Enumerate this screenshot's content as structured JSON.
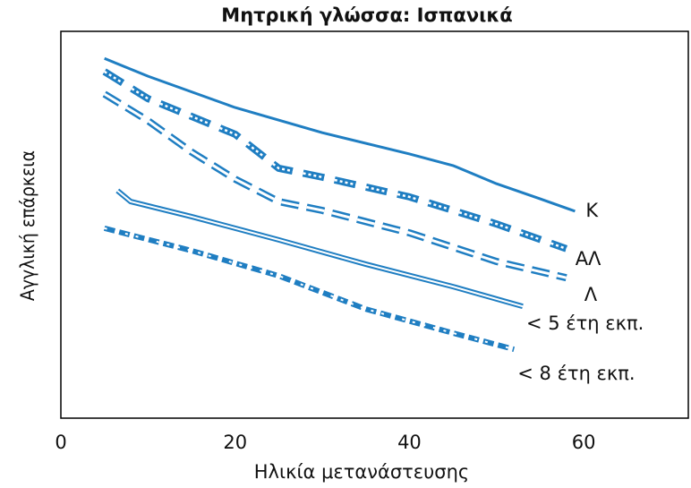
{
  "chart_data": {
    "type": "line",
    "title": "Μητρική γλώσσα: Ισπανικά",
    "xlabel": "Ηλικία μετανάστευσης",
    "ylabel": "Αγγλική επάρκεια",
    "xlim": [
      0,
      72
    ],
    "xticks": [
      0,
      20,
      40,
      60
    ],
    "ylim": [
      0,
      100
    ],
    "series": [
      {
        "name": "Κ",
        "color": "#1f7ec2",
        "style": "solid",
        "x": [
          5,
          10,
          20,
          30,
          40,
          45,
          50,
          55,
          59
        ],
        "values": [
          93,
          88.4,
          80.3,
          73.8,
          68.3,
          65.3,
          60.6,
          56.7,
          53.5
        ]
      },
      {
        "name": "ΑΛ",
        "color": "#1f7ec2",
        "style": "dashed-dotted",
        "x": [
          5,
          10,
          20,
          25,
          30,
          40,
          50,
          58
        ],
        "values": [
          89.6,
          82.6,
          73.4,
          64.6,
          62.3,
          57.2,
          50.2,
          43.8
        ]
      },
      {
        "name": "Λ",
        "color": "#1f7ec2",
        "style": "dashed-hollow",
        "x": [
          5,
          10,
          15,
          20,
          25,
          30,
          40,
          50,
          58
        ],
        "values": [
          83.8,
          76.9,
          68.8,
          61.8,
          56,
          53.7,
          47.9,
          40.5,
          36.3
        ]
      },
      {
        "name": "< 5 έτη εκπ.",
        "color": "#1f7ec2",
        "style": "double",
        "x": [
          6.5,
          8,
          15,
          25,
          35,
          45,
          53
        ],
        "values": [
          58.8,
          56,
          52.1,
          46.1,
          39.8,
          34,
          28.9
        ]
      },
      {
        "name": "< 8 έτη εκπ.",
        "color": "#1f7ec2",
        "style": "short-dashed",
        "x": [
          5,
          15,
          25,
          35,
          45,
          52
        ],
        "values": [
          49.1,
          43.3,
          36.8,
          28.2,
          22,
          17.8
        ]
      }
    ]
  }
}
